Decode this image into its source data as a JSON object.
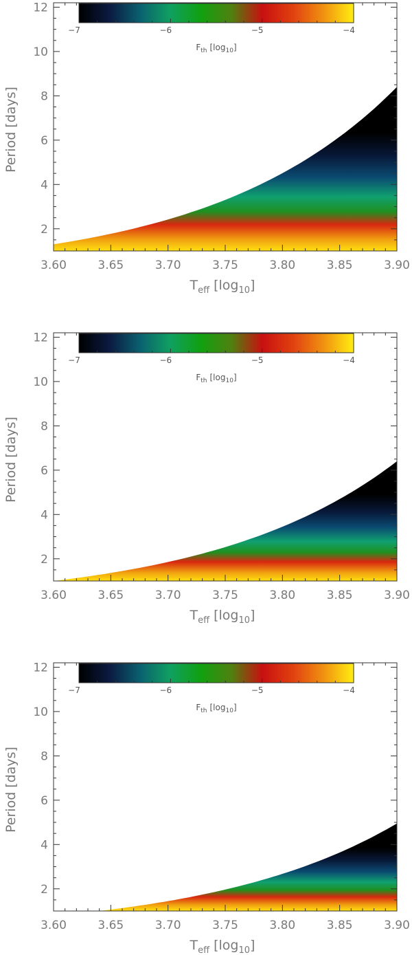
{
  "chart_data": [
    {
      "type": "area",
      "x_label": {
        "main": "T",
        "sub": "eff",
        "bracket": "[log",
        "sub2": "10",
        "close": "]"
      },
      "y_label": "Period  [days]",
      "xlim": [
        3.6,
        3.9
      ],
      "ylim": [
        1,
        12.2
      ],
      "x_ticks": [
        "3.60",
        "3.65",
        "3.70",
        "3.75",
        "3.80",
        "3.85",
        "3.90"
      ],
      "x_tick_values": [
        3.6,
        3.65,
        3.7,
        3.75,
        3.8,
        3.85,
        3.9
      ],
      "y_ticks": [
        "2",
        "4",
        "6",
        "8",
        "10",
        "12"
      ],
      "y_tick_values": [
        2,
        4,
        6,
        8,
        10,
        12
      ],
      "boundary": {
        "x_start": 3.6,
        "p_start": 1.3,
        "x_end": 3.9,
        "p_end": 8.4
      },
      "colorbar": {
        "min": -7,
        "max": -4,
        "ticks": [
          "−7",
          "−6",
          "−5",
          "−4"
        ],
        "tick_values": [
          -7,
          -6,
          -5,
          -4
        ],
        "label_main": "F",
        "label_sub": "th",
        "label_rest": "[log",
        "label_sub2": "10",
        "label_close": "]"
      }
    },
    {
      "type": "area",
      "x_label": {
        "main": "T",
        "sub": "eff",
        "bracket": "[log",
        "sub2": "10",
        "close": "]"
      },
      "y_label": "Period  [days]",
      "xlim": [
        3.6,
        3.9
      ],
      "ylim": [
        1,
        12.2
      ],
      "x_ticks": [
        "3.60",
        "3.65",
        "3.70",
        "3.75",
        "3.80",
        "3.85",
        "3.90"
      ],
      "x_tick_values": [
        3.6,
        3.65,
        3.7,
        3.75,
        3.8,
        3.85,
        3.9
      ],
      "y_ticks": [
        "2",
        "4",
        "6",
        "8",
        "10",
        "12"
      ],
      "y_tick_values": [
        2,
        4,
        6,
        8,
        10,
        12
      ],
      "boundary": {
        "x_start": 3.6,
        "p_start": 1.0,
        "x_end": 3.9,
        "p_end": 6.4
      },
      "colorbar": {
        "min": -7,
        "max": -4,
        "ticks": [
          "−7",
          "−6",
          "−5",
          "−4"
        ],
        "tick_values": [
          -7,
          -6,
          -5,
          -4
        ],
        "label_main": "F",
        "label_sub": "th",
        "label_rest": "[log",
        "label_sub2": "10",
        "label_close": "]"
      }
    },
    {
      "type": "area",
      "x_label": {
        "main": "T",
        "sub": "eff",
        "bracket": "[log",
        "sub2": "10",
        "close": "]"
      },
      "y_label": "Period  [days]",
      "xlim": [
        3.6,
        3.9
      ],
      "ylim": [
        1,
        12.2
      ],
      "x_ticks": [
        "3.60",
        "3.65",
        "3.70",
        "3.75",
        "3.80",
        "3.85",
        "3.90"
      ],
      "x_tick_values": [
        3.6,
        3.65,
        3.7,
        3.75,
        3.8,
        3.85,
        3.9
      ],
      "y_ticks": [
        "2",
        "4",
        "6",
        "8",
        "10",
        "12"
      ],
      "y_tick_values": [
        2,
        4,
        6,
        8,
        10,
        12
      ],
      "boundary": {
        "x_start": 3.64,
        "p_start": 1.0,
        "x_end": 3.9,
        "p_end": 4.95
      },
      "colorbar": {
        "min": -7,
        "max": -4,
        "ticks": [
          "−7",
          "−6",
          "−5",
          "−4"
        ],
        "tick_values": [
          -7,
          -6,
          -5,
          -4
        ],
        "label_main": "F",
        "label_sub": "th",
        "label_rest": "[log",
        "label_sub2": "10",
        "label_close": "]"
      }
    }
  ],
  "colormap": [
    "#000000",
    "#0a1a40",
    "#0a6070",
    "#10a060",
    "#10a010",
    "#508010",
    "#c81010",
    "#e04010",
    "#f09010",
    "#ffee10"
  ]
}
